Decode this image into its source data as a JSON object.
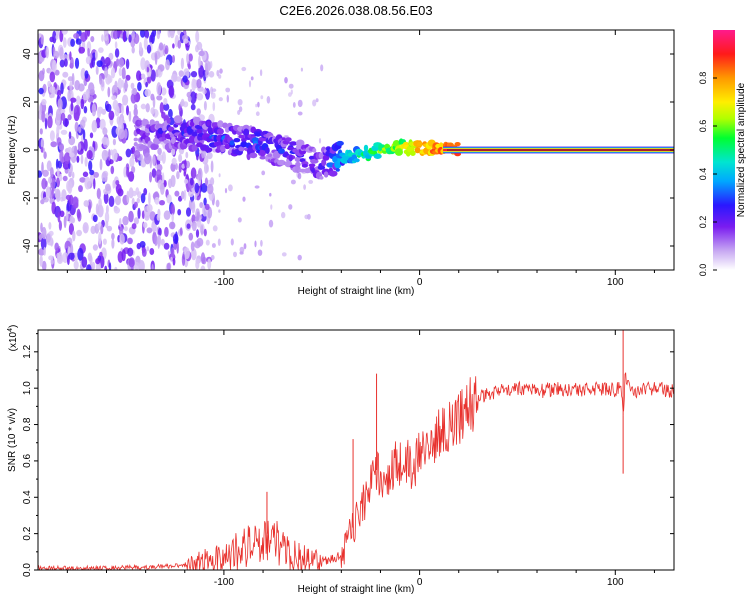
{
  "title": "C2E6.2026.038.08.56.E03",
  "chart_data": [
    {
      "type": "heatmap",
      "xlabel": "Height of straight line (km)",
      "ylabel": "Frequency (Hz)",
      "xlim": [
        -195,
        130
      ],
      "ylim": [
        -50,
        50
      ],
      "xticks": [
        -100,
        0,
        100
      ],
      "xtick_labels": [
        "-100",
        "0",
        "100"
      ],
      "yticks": [
        -40,
        -20,
        0,
        20,
        40
      ],
      "ytick_labels": [
        "-40",
        "-20",
        "0",
        "20",
        "40"
      ],
      "colorbar": {
        "label": "Normalized spectral amplitude",
        "range": [
          0,
          1
        ],
        "ticks": [
          0.0,
          0.2,
          0.4,
          0.6,
          0.8
        ],
        "tick_labels": [
          "0.0",
          "0.2",
          "0.4",
          "0.6",
          "0.8"
        ]
      },
      "ridge": {
        "x": [
          -140,
          -120,
          -100,
          -80,
          -60,
          -50,
          -40,
          -30,
          -20,
          -10,
          0,
          10,
          20,
          60,
          100,
          130
        ],
        "frequency": [
          7,
          7,
          5,
          2,
          -3,
          -6,
          -3,
          -2,
          0,
          1,
          1,
          0,
          0,
          0,
          0,
          0
        ],
        "amplitude": [
          0.25,
          0.3,
          0.35,
          0.35,
          0.3,
          0.3,
          0.45,
          0.55,
          0.65,
          0.7,
          0.85,
          0.9,
          0.95,
          0.97,
          0.98,
          0.98
        ]
      }
    },
    {
      "type": "line",
      "xlabel": "Height of straight line (km)",
      "ylabel": "SNR (10 * v/v)",
      "y_multiplier": "(x10",
      "y_exponent": "4",
      "y_multiplier_close": ")",
      "xlim": [
        -195,
        130
      ],
      "ylim": [
        0,
        1.32
      ],
      "xticks": [
        -100,
        0,
        100
      ],
      "xtick_labels": [
        "-100",
        "0",
        "100"
      ],
      "yticks": [
        0.0,
        0.2,
        0.4,
        0.6,
        0.8,
        1.0,
        1.2
      ],
      "ytick_labels": [
        "0.0",
        "0.2",
        "0.4",
        "0.6",
        "0.8",
        "1.0",
        "1.2"
      ],
      "series": [
        {
          "name": "SNR",
          "color": "#e8322e",
          "x": [
            -195,
            -160,
            -130,
            -115,
            -105,
            -95,
            -85,
            -78,
            -70,
            -60,
            -50,
            -45,
            -40,
            -35,
            -32,
            -28,
            -25,
            -22,
            -18,
            -15,
            -10,
            -5,
            0,
            5,
            10,
            15,
            20,
            25,
            30,
            40,
            50,
            60,
            70,
            80,
            90,
            100,
            103,
            104,
            105,
            110,
            120,
            130
          ],
          "y": [
            0.01,
            0.01,
            0.02,
            0.03,
            0.06,
            0.1,
            0.14,
            0.2,
            0.12,
            0.06,
            0.05,
            0.06,
            0.08,
            0.2,
            0.3,
            0.38,
            0.45,
            0.55,
            0.52,
            0.55,
            0.6,
            0.58,
            0.62,
            0.68,
            0.75,
            0.8,
            0.85,
            0.9,
            0.95,
            0.98,
            1.0,
            0.98,
            1.0,
            0.99,
            1.0,
            0.99,
            1.02,
            0.85,
            1.05,
            0.98,
            1.0,
            0.98
          ]
        }
      ],
      "spikes": [
        {
          "x": -78,
          "y": 0.43
        },
        {
          "x": -34,
          "y": 0.72
        },
        {
          "x": -22,
          "y": 1.08
        },
        {
          "x": 104,
          "y": 1.32
        },
        {
          "x": 104,
          "y": 0.53
        }
      ]
    }
  ]
}
